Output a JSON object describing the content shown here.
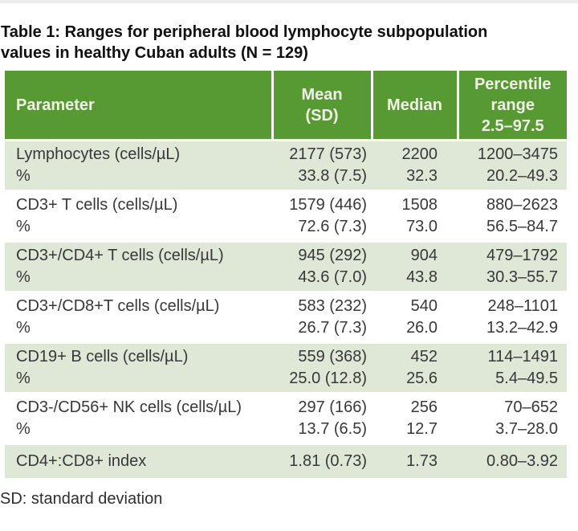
{
  "caption": {
    "line1": "Table 1: Ranges for peripheral blood lymphocyte subpopulation",
    "line2": "values in healthy Cuban adults (N = 129)"
  },
  "table": {
    "headers": [
      "Parameter",
      "Mean\n(SD)",
      "Median",
      "Percentile\nrange\n2.5–97.5"
    ],
    "rows": [
      {
        "parameter": "Lymphocytes (cells/µL)",
        "parameter_pct": "%",
        "mean": "2177 (573)",
        "mean_pct": "33.8 (7.5)",
        "median": "2200",
        "median_pct": "32.3",
        "range": "1200–3475",
        "range_pct": "20.2–49.3"
      },
      {
        "parameter": "CD3+ T cells (cells/µL)",
        "parameter_pct": "%",
        "mean": "1579 (446)",
        "mean_pct": "72.6 (7.3)",
        "median": "1508",
        "median_pct": "73.0",
        "range": "880–2623",
        "range_pct": "56.5–84.7"
      },
      {
        "parameter": "CD3+/CD4+ T cells (cells/µL)",
        "parameter_pct": "%",
        "mean": "945 (292)",
        "mean_pct": "43.6 (7.0)",
        "median": "904",
        "median_pct": "43.8",
        "range": "479–1792",
        "range_pct": "30.3–55.7"
      },
      {
        "parameter": "CD3+/CD8+T cells (cells/µL)",
        "parameter_pct": "%",
        "mean": "583 (232)",
        "mean_pct": "26.7 (7.3)",
        "median": "540",
        "median_pct": "26.0",
        "range": "248–1101",
        "range_pct": "13.2–42.9"
      },
      {
        "parameter": "CD19+ B cells (cells/µL)",
        "parameter_pct": "%",
        "mean": "559 (368)",
        "mean_pct": "25.0 (12.8)",
        "median": "452",
        "median_pct": "25.6",
        "range": "114–1491",
        "range_pct": "5.4–49.5"
      },
      {
        "parameter": "CD3-/CD56+ NK cells (cells/µL)",
        "parameter_pct": "%",
        "mean": "297 (166)",
        "mean_pct": "13.7 (6.5)",
        "median": "256",
        "median_pct": "12.7",
        "range": "70–652",
        "range_pct": "3.7–28.0"
      },
      {
        "parameter": "CD4+:CD8+ index",
        "mean": "1.81 (0.73)",
        "median": "1.73",
        "range": "0.80–3.92"
      }
    ]
  },
  "footnote": "SD: standard deviation",
  "colors": {
    "header_bg": "#579a33",
    "header_text": "#f1f1e8",
    "row_alt_bg": "#dfe8d6",
    "row_bg": "#ffffff",
    "body_text": "#383838"
  }
}
